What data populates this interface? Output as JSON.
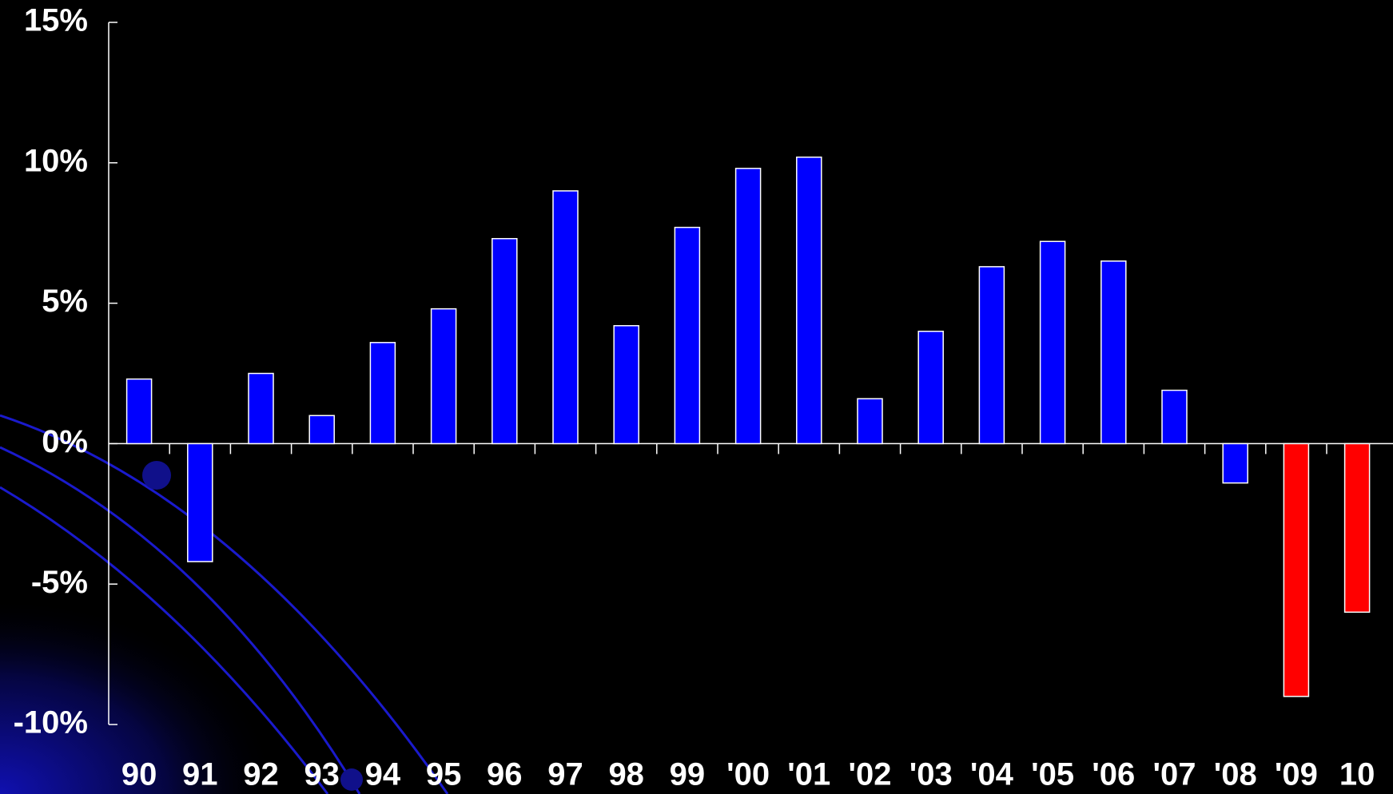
{
  "chart_data": {
    "type": "bar",
    "categories": [
      "90",
      "91",
      "92",
      "93",
      "94",
      "95",
      "96",
      "97",
      "98",
      "99",
      "'00",
      "'01",
      "'02",
      "'03",
      "'04",
      "'05",
      "'06",
      "'07",
      "'08",
      "'09",
      "10"
    ],
    "values": [
      2.3,
      -4.2,
      2.5,
      1.0,
      3.6,
      4.8,
      7.3,
      9.0,
      4.2,
      7.7,
      9.8,
      10.2,
      1.6,
      4.0,
      6.3,
      7.2,
      6.5,
      1.9,
      -1.4,
      -9.0,
      -6.0
    ],
    "colors": [
      "#0000ff",
      "#0000ff",
      "#0000ff",
      "#0000ff",
      "#0000ff",
      "#0000ff",
      "#0000ff",
      "#0000ff",
      "#0000ff",
      "#0000ff",
      "#0000ff",
      "#0000ff",
      "#0000ff",
      "#0000ff",
      "#0000ff",
      "#0000ff",
      "#0000ff",
      "#0000ff",
      "#0000ff",
      "#ff0000",
      "#ff0000"
    ],
    "ylim": [
      -10,
      15
    ],
    "yticks": [
      {
        "value": -10,
        "label": "-10%"
      },
      {
        "value": -5,
        "label": "-5%"
      },
      {
        "value": 0,
        "label": "0%"
      },
      {
        "value": 5,
        "label": "5%"
      },
      {
        "value": 10,
        "label": "10%"
      },
      {
        "value": 15,
        "label": "15%"
      }
    ]
  }
}
